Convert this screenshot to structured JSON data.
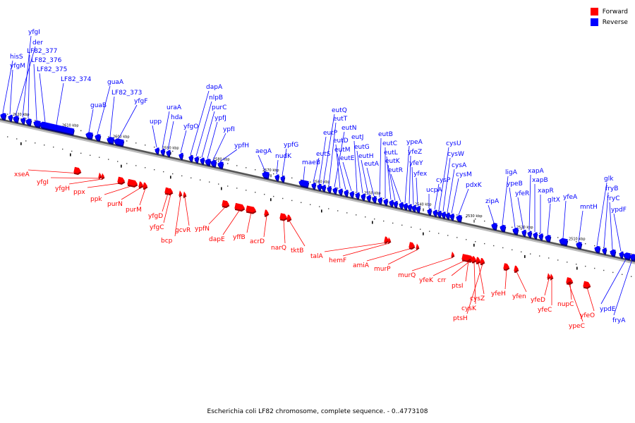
{
  "legend": {
    "forward_label": "Forward",
    "reverse_label": "Reverse",
    "forward_color": "#ff0000",
    "reverse_color": "#0000ff"
  },
  "caption": "Escherichia coli LF82 chromosome, complete sequence. - 0..4773108",
  "axis": {
    "ticks": [
      {
        "label": "2620 kbp",
        "pos": 2620
      },
      {
        "label": "2610 kbp",
        "pos": 2610
      },
      {
        "label": "2600 kbp",
        "pos": 2600
      },
      {
        "label": "2590 kbp",
        "pos": 2590
      },
      {
        "label": "2580 kbp",
        "pos": 2580
      },
      {
        "label": "2570 kbp",
        "pos": 2570
      },
      {
        "label": "2560 kbp",
        "pos": 2560
      },
      {
        "label": "2550 kbp",
        "pos": 2550
      },
      {
        "label": "2540 kbp",
        "pos": 2540
      },
      {
        "label": "2530 kbp",
        "pos": 2530
      },
      {
        "label": "2520 kbp",
        "pos": 2520
      },
      {
        "label": "2510 kbp",
        "pos": 2510
      }
    ]
  },
  "reverse_genes": [
    "hisS",
    "yfgM",
    "der",
    "yfgI",
    "LF82_377",
    "LF82_376",
    "LF82_375",
    "LF82_374",
    "guaB",
    "guaA",
    "LF82_373",
    "yfgF",
    "upp",
    "uraA",
    "hda",
    "yfgO",
    "dapA",
    "nlpB",
    "purC",
    "ypfJ",
    "ypfI",
    "ypfH",
    "aegA",
    "nudK",
    "ypfG",
    "maeB",
    "eutS",
    "eutP",
    "eutQ",
    "eutT",
    "eutN",
    "eutD",
    "eutM",
    "eutE",
    "eutJ",
    "eutG",
    "eutH",
    "eutA",
    "eutB",
    "eutC",
    "eutL",
    "eutK",
    "eutR",
    "ypeA",
    "yfeZ",
    "yfeY",
    "yfex",
    "ucpA",
    "cysP",
    "cysU",
    "cysW",
    "cysA",
    "cysM",
    "pdxK",
    "zipA",
    "ligA",
    "ypeB",
    "yfeR",
    "xapA",
    "xapB",
    "xapR",
    "gltX",
    "yfeA",
    "mntH",
    "glk",
    "fryB",
    "fryC",
    "ypdF",
    "ypdE",
    "fryA"
  ],
  "forward_genes": [
    "xseA",
    "yfgI",
    "yfgH",
    "ppx",
    "ppk",
    "purN",
    "purM",
    "yfgD",
    "yfgC",
    "bcp",
    "gcvR",
    "ypfN",
    "dapE",
    "yffB",
    "acrD",
    "narQ",
    "tktB",
    "talA",
    "hemF",
    "amiA",
    "murP",
    "murQ",
    "yfeK",
    "crr",
    "ptsI",
    "cysZ",
    "cysK",
    "ptsH",
    "yfeH",
    "yfen",
    "yfeD",
    "yfeC",
    "nupC",
    "ypeC",
    "yfeO"
  ]
}
